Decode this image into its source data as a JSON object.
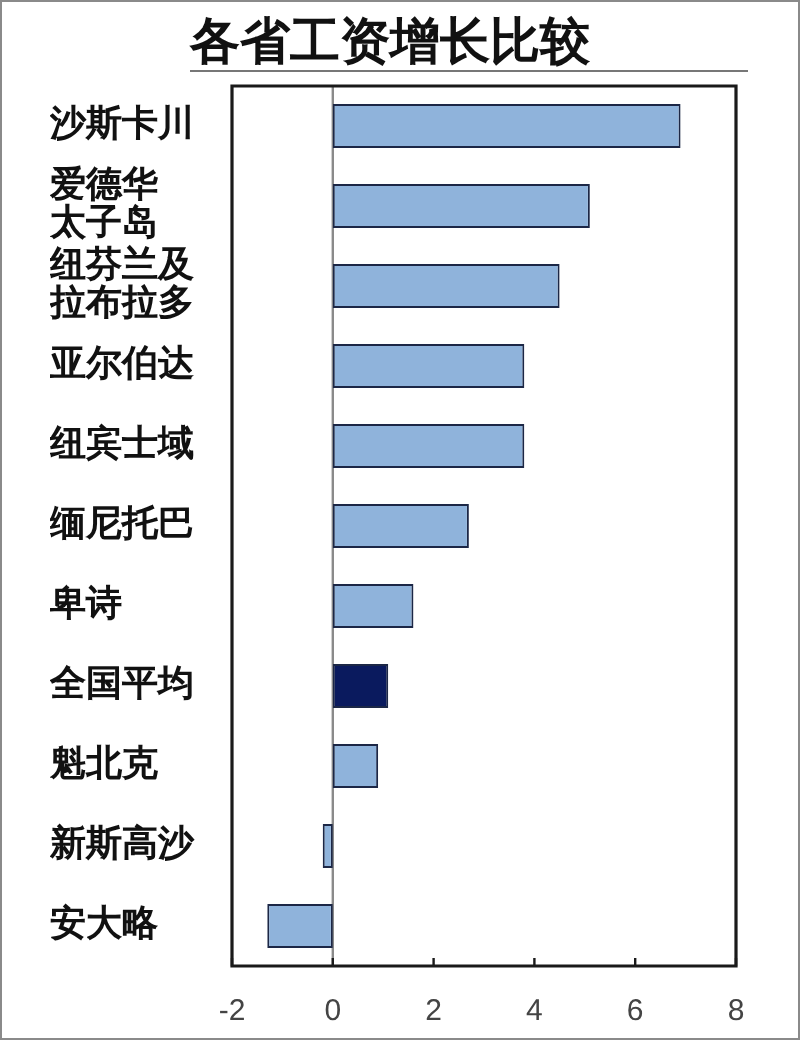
{
  "chart_data": {
    "type": "bar",
    "orientation": "horizontal",
    "title": "各省工资增长比较",
    "categories": [
      "沙斯卡川",
      "爱德华太子岛",
      "纽芬兰及拉布拉多",
      "亚尔伯达",
      "纽宾士域",
      "缅尼托巴",
      "卑诗",
      "全国平均",
      "魁北克",
      "新斯高沙",
      "安大略"
    ],
    "values": [
      6.9,
      5.1,
      4.5,
      3.8,
      3.8,
      2.7,
      1.6,
      1.1,
      0.9,
      -0.2,
      -1.3
    ],
    "colors": [
      "#8fb3db",
      "#8fb3db",
      "#8fb3db",
      "#8fb3db",
      "#8fb3db",
      "#8fb3db",
      "#8fb3db",
      "#0a1a5e",
      "#8fb3db",
      "#8fb3db",
      "#8fb3db"
    ],
    "xlim": [
      -2,
      8
    ],
    "xticks": [
      -2,
      0,
      2,
      4,
      6,
      8
    ],
    "ref_lines": [
      {
        "axis": "x",
        "value": 0,
        "color": "#8a8a8a"
      }
    ],
    "grid": false,
    "legend": false
  }
}
